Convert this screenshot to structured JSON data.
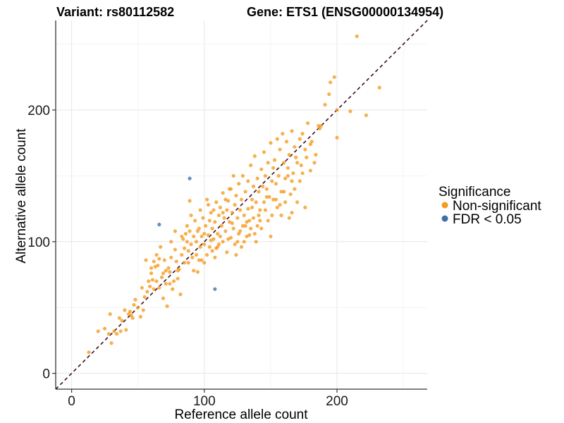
{
  "chart_data": {
    "type": "scatter",
    "title_left": "Variant: rs80112582",
    "title_right": "Gene: ETS1 (ENSG00000134954)",
    "xlabel": "Reference allele count",
    "ylabel": "Alternative allele count",
    "xlim": [
      -12,
      268
    ],
    "ylim": [
      -12,
      268
    ],
    "xticks": [
      0,
      100,
      200
    ],
    "yticks": [
      0,
      100,
      200
    ],
    "grid": true,
    "diagonal_line": {
      "style": "dashed",
      "color": "#3d0a1e"
    },
    "legend": {
      "title": "Significance",
      "position": "right",
      "entries": [
        {
          "label": "Non-significant",
          "color": "#f59a1c"
        },
        {
          "label": "FDR < 0.05",
          "color": "#3e6fa8"
        }
      ]
    },
    "series": [
      {
        "name": "Non-significant",
        "color": "#f59a1c",
        "points": [
          [
            13,
            16
          ],
          [
            20,
            32
          ],
          [
            25,
            34
          ],
          [
            28,
            30
          ],
          [
            29,
            45
          ],
          [
            30,
            23
          ],
          [
            34,
            30
          ],
          [
            37,
            32
          ],
          [
            38,
            40
          ],
          [
            40,
            48
          ],
          [
            41,
            33
          ],
          [
            43,
            45
          ],
          [
            44,
            47
          ],
          [
            46,
            42
          ],
          [
            47,
            52
          ],
          [
            48,
            56
          ],
          [
            50,
            50
          ],
          [
            52,
            43
          ],
          [
            54,
            48
          ],
          [
            55,
            58
          ],
          [
            57,
            62
          ],
          [
            58,
            70
          ],
          [
            59,
            66
          ],
          [
            60,
            76
          ],
          [
            61,
            71
          ],
          [
            62,
            85
          ],
          [
            63,
            81
          ],
          [
            64,
            90
          ],
          [
            65,
            82
          ],
          [
            66,
            65
          ],
          [
            67,
            96
          ],
          [
            68,
            73
          ],
          [
            69,
            76
          ],
          [
            70,
            86
          ],
          [
            71,
            68
          ],
          [
            72,
            51
          ],
          [
            73,
            80
          ],
          [
            74,
            77
          ],
          [
            75,
            88
          ],
          [
            76,
            64
          ],
          [
            77,
            70
          ],
          [
            78,
            94
          ],
          [
            79,
            85
          ],
          [
            80,
            78
          ],
          [
            81,
            79
          ],
          [
            82,
            60
          ],
          [
            83,
            90
          ],
          [
            84,
            102
          ],
          [
            85,
            95
          ],
          [
            86,
            106
          ],
          [
            87,
            112
          ],
          [
            88,
            93
          ],
          [
            88,
            84
          ],
          [
            89,
            108
          ],
          [
            90,
            98
          ],
          [
            90,
            120
          ],
          [
            91,
            88
          ],
          [
            92,
            104
          ],
          [
            93,
            116
          ],
          [
            94,
            100
          ],
          [
            94,
            90
          ],
          [
            95,
            77
          ],
          [
            96,
            110
          ],
          [
            97,
            96
          ],
          [
            97,
            124
          ],
          [
            98,
            104
          ],
          [
            99,
            118
          ],
          [
            100,
            106
          ],
          [
            100,
            98
          ],
          [
            101,
            112
          ],
          [
            102,
            90
          ],
          [
            103,
            128
          ],
          [
            103,
            105
          ],
          [
            104,
            96
          ],
          [
            105,
            122
          ],
          [
            106,
            110
          ],
          [
            106,
            93
          ],
          [
            107,
            102
          ],
          [
            108,
            115
          ],
          [
            108,
            88
          ],
          [
            109,
            130
          ],
          [
            110,
            106
          ],
          [
            111,
            120
          ],
          [
            111,
            98
          ],
          [
            112,
            126
          ],
          [
            113,
            112
          ],
          [
            114,
            100
          ],
          [
            114,
            137
          ],
          [
            115,
            118
          ],
          [
            116,
            108
          ],
          [
            117,
            124
          ],
          [
            117,
            92
          ],
          [
            118,
            131
          ],
          [
            119,
            115
          ],
          [
            120,
            103
          ],
          [
            120,
            140
          ],
          [
            121,
            122
          ],
          [
            122,
            110
          ],
          [
            123,
            128
          ],
          [
            123,
            98
          ],
          [
            124,
            135
          ],
          [
            125,
            118
          ],
          [
            126,
            144
          ],
          [
            126,
            106
          ],
          [
            127,
            124
          ],
          [
            128,
            132
          ],
          [
            129,
            112
          ],
          [
            129,
            150
          ],
          [
            130,
            120
          ],
          [
            131,
            138
          ],
          [
            132,
            115
          ],
          [
            133,
            146
          ],
          [
            133,
            125
          ],
          [
            134,
            105
          ],
          [
            135,
            158
          ],
          [
            136,
            132
          ],
          [
            137,
            142
          ],
          [
            137,
            118
          ],
          [
            138,
            165
          ],
          [
            139,
            130
          ],
          [
            140,
            112
          ],
          [
            140,
            148
          ],
          [
            141,
            138
          ],
          [
            142,
            124
          ],
          [
            143,
            155
          ],
          [
            144,
            142
          ],
          [
            145,
            130
          ],
          [
            145,
            168
          ],
          [
            146,
            150
          ],
          [
            147,
            140
          ],
          [
            148,
            160
          ],
          [
            149,
            134
          ],
          [
            150,
            175
          ],
          [
            151,
            146
          ],
          [
            152,
            156
          ],
          [
            153,
            162
          ],
          [
            154,
            144
          ],
          [
            155,
            178
          ],
          [
            156,
            150
          ],
          [
            157,
            170
          ],
          [
            158,
            138
          ],
          [
            159,
            182
          ],
          [
            160,
            160
          ],
          [
            161,
            148
          ],
          [
            162,
            176
          ],
          [
            163,
            156
          ],
          [
            164,
            166
          ],
          [
            165,
            136
          ],
          [
            166,
            184
          ],
          [
            167,
            152
          ],
          [
            168,
            172
          ],
          [
            170,
            160
          ],
          [
            172,
            178
          ],
          [
            174,
            182
          ],
          [
            176,
            170
          ],
          [
            180,
            174
          ],
          [
            186,
            188
          ],
          [
            188,
            188
          ],
          [
            191,
            204
          ],
          [
            195,
            221
          ],
          [
            200,
            179
          ],
          [
            198,
            225
          ],
          [
            210,
            199
          ],
          [
            215,
            256
          ],
          [
            222,
            196
          ],
          [
            232,
            217
          ],
          [
            56,
            86
          ],
          [
            60,
            80
          ],
          [
            64,
            70
          ],
          [
            69,
            57
          ],
          [
            71,
            78
          ],
          [
            75,
            100
          ],
          [
            78,
            108
          ],
          [
            80,
            72
          ],
          [
            85,
            84
          ],
          [
            87,
            100
          ],
          [
            92,
            78
          ],
          [
            95,
            108
          ],
          [
            98,
            86
          ],
          [
            100,
            84
          ],
          [
            104,
            116
          ],
          [
            107,
            124
          ],
          [
            110,
            96
          ],
          [
            112,
            104
          ],
          [
            116,
            132
          ],
          [
            119,
            140
          ],
          [
            122,
            150
          ],
          [
            124,
            90
          ],
          [
            127,
            108
          ],
          [
            130,
            100
          ],
          [
            132,
            104
          ],
          [
            134,
            116
          ],
          [
            136,
            126
          ],
          [
            138,
            106
          ],
          [
            141,
            120
          ],
          [
            143,
            110
          ],
          [
            146,
            124
          ],
          [
            148,
            116
          ],
          [
            150,
            104
          ],
          [
            152,
            132
          ],
          [
            155,
            126
          ],
          [
            158,
            120
          ],
          [
            161,
            130
          ],
          [
            164,
            118
          ],
          [
            168,
            140
          ],
          [
            172,
            146
          ],
          [
            176,
            126
          ],
          [
            180,
            154
          ],
          [
            183,
            160
          ],
          [
            170,
            130
          ],
          [
            32,
            32
          ],
          [
            36,
            42
          ],
          [
            45,
            44
          ],
          [
            53,
            65
          ],
          [
            62,
            64
          ],
          [
            66,
            87
          ],
          [
            74,
            68
          ],
          [
            83,
            104
          ],
          [
            89,
            131
          ],
          [
            96,
            86
          ],
          [
            102,
            132
          ],
          [
            105,
            101
          ],
          [
            109,
            95
          ],
          [
            114,
            122
          ],
          [
            118,
            102
          ],
          [
            121,
            114
          ],
          [
            125,
            100
          ],
          [
            128,
            96
          ],
          [
            131,
            112
          ],
          [
            135,
            110
          ],
          [
            139,
            100
          ],
          [
            142,
            116
          ],
          [
            147,
            134
          ],
          [
            151,
            120
          ],
          [
            154,
            132
          ],
          [
            157,
            128
          ],
          [
            160,
            138
          ],
          [
            163,
            150
          ],
          [
            166,
            146
          ],
          [
            169,
            164
          ],
          [
            173,
            158
          ],
          [
            177,
            164
          ],
          [
            181,
            176
          ],
          [
            184,
            166
          ],
          [
            187,
            186
          ],
          [
            194,
            212
          ],
          [
            200,
            200
          ],
          [
            178,
            190
          ],
          [
            174,
            152
          ],
          [
            166,
            122
          ]
        ]
      },
      {
        "name": "FDR < 0.05",
        "color": "#3e6fa8",
        "points": [
          [
            66,
            113
          ],
          [
            89,
            148
          ],
          [
            108,
            64
          ]
        ]
      }
    ]
  }
}
